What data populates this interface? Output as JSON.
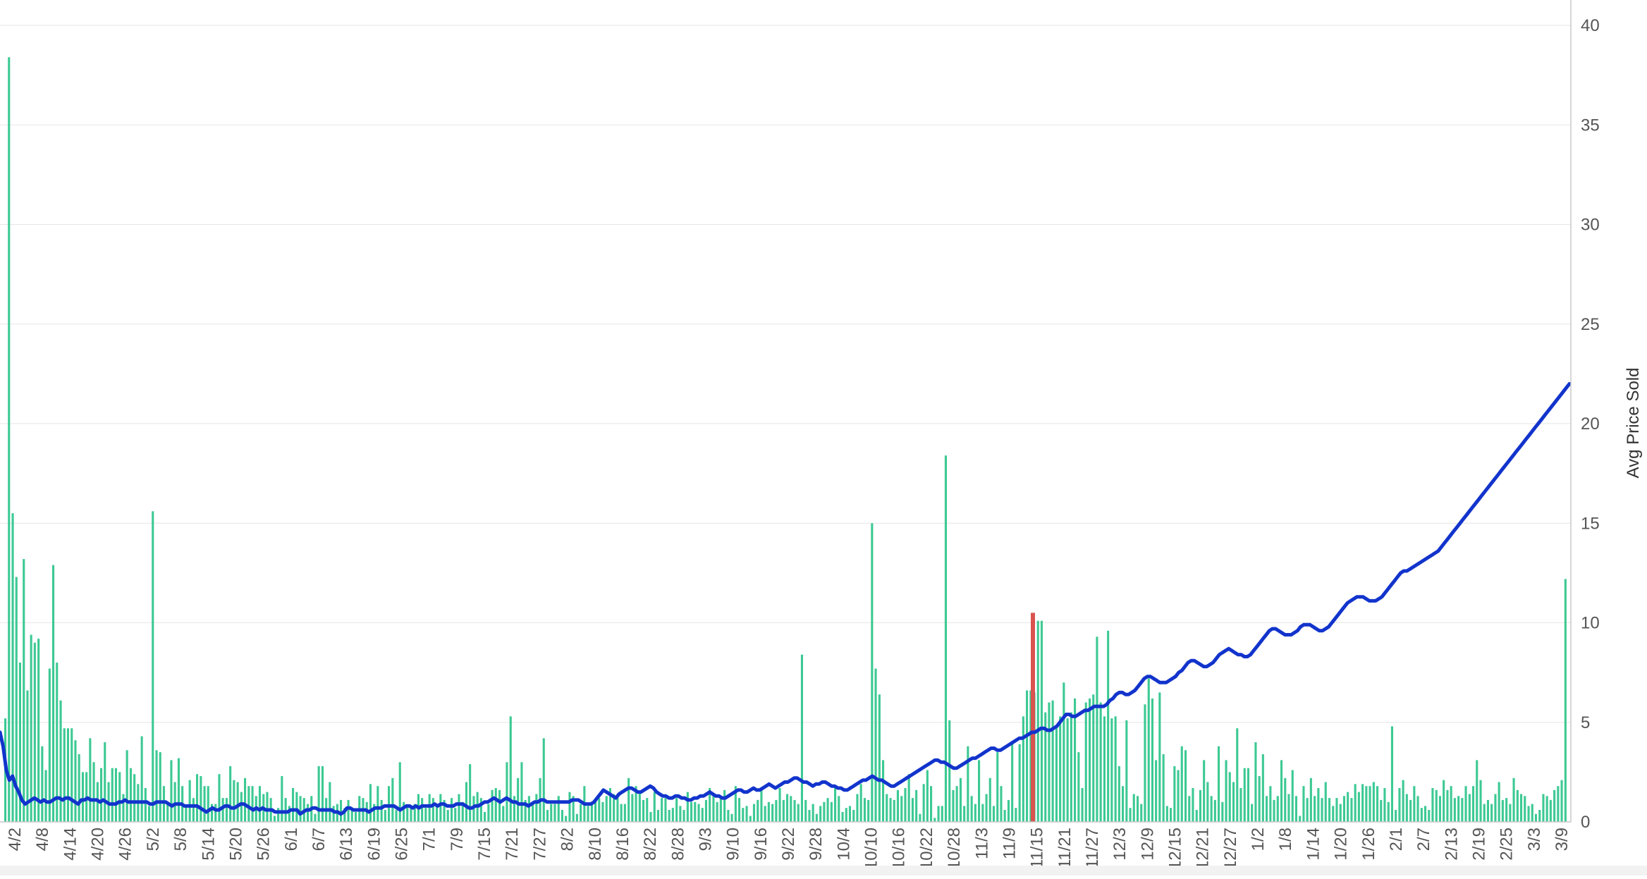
{
  "chart_data": {
    "type": "bar",
    "ylabel": "Avg Price Sold",
    "ylim": [
      0,
      40
    ],
    "y_ticks": [
      0,
      5,
      10,
      15,
      20,
      25,
      30,
      35,
      40
    ],
    "grid": true,
    "legend": "none",
    "colors": {
      "bars": "#3cc993",
      "line": "#1234cc",
      "marker": "#d9534f",
      "grid": "#e6e6e6",
      "axis": "#c8c8c8"
    },
    "x_tick_labels": [
      "4/2",
      "4/8",
      "4/14",
      "4/20",
      "4/26",
      "5/2",
      "5/8",
      "5/14",
      "5/20",
      "5/26",
      "6/1",
      "6/7",
      "6/13",
      "6/19",
      "6/25",
      "7/1",
      "7/9",
      "7/15",
      "7/21",
      "7/27",
      "8/2",
      "8/10",
      "8/16",
      "8/22",
      "8/28",
      "9/3",
      "9/10",
      "9/16",
      "9/22",
      "9/28",
      "10/4",
      "10/10",
      "10/16",
      "10/22",
      "10/28",
      "11/3",
      "11/9",
      "11/15",
      "11/21",
      "11/27",
      "12/3",
      "12/9",
      "12/15",
      "12/21",
      "12/27",
      "1/2",
      "1/8",
      "1/14",
      "1/20",
      "1/26",
      "2/1",
      "2/7",
      "2/13",
      "2/19",
      "2/25",
      "3/3",
      "3/9"
    ],
    "bars": [
      5.2,
      38.4,
      15.5,
      12.3,
      8,
      13.2,
      6.6,
      9.4,
      9,
      9.2,
      3.8,
      2.6,
      7.7,
      12.9,
      8,
      6.1,
      4.7,
      4.7,
      4.7,
      4.1,
      3.4,
      2.5,
      2.5,
      4.2,
      3,
      2,
      2.7,
      4,
      2,
      2.7,
      2.7,
      2.5,
      1.4,
      3.6,
      2.7,
      2.4,
      1.9,
      4.3,
      1.7,
      0.8,
      15.6,
      3.6,
      3.5,
      1.8,
      0.9,
      3.1,
      2,
      3.2,
      1.8,
      0.8,
      2.1,
      1.2,
      2.4,
      2.3,
      1.8,
      1.8,
      0.9,
      0.9,
      2.4,
      1.2,
      1.2,
      2.8,
      2.1,
      2,
      1.5,
      2.2,
      1.8,
      1.8,
      1.3,
      1.8,
      1.4,
      1.5,
      1.2,
      0.3,
      0.7,
      2.3,
      1.2,
      0.8,
      1.7,
      1.5,
      1.3,
      1.2,
      0.9,
      1.3,
      0.4,
      2.8,
      2.8,
      1.2,
      2,
      0.8,
      0.9,
      1.1,
      0.7,
      1.1,
      0.7,
      0.5,
      1.3,
      1.2,
      1,
      1.9,
      0.9,
      1.8,
      1.1,
      0.6,
      1.8,
      2.2,
      0.6,
      3,
      1,
      0.8,
      0.7,
      0.9,
      1.4,
      1.2,
      0.7,
      1.4,
      1.2,
      0.9,
      1.4,
      1.1,
      0.6,
      1.2,
      0.7,
      1.4,
      1,
      2,
      2.9,
      1.3,
      1.5,
      1.2,
      0.5,
      0.9,
      1.6,
      1.7,
      1.6,
      0.8,
      3,
      5.3,
      1.3,
      2.2,
      3,
      1.1,
      1.3,
      0.9,
      1.4,
      2.2,
      4.2,
      0.6,
      0.9,
      0.9,
      1.3,
      0.6,
      0.3,
      1.5,
      1.3,
      0.4,
      0.9,
      1.8,
      0.8,
      0.9,
      1,
      1.2,
      1,
      1.3,
      1.7,
      1.4,
      1.2,
      0.9,
      0.9,
      2.2,
      1.4,
      1.8,
      1.5,
      1.1,
      1.2,
      0.5,
      1.5,
      0.6,
      1.2,
      1.2,
      0.6,
      0.7,
      1.2,
      0.8,
      0.6,
      1.5,
      1,
      1,
      0.9,
      0.7,
      1.1,
      1.7,
      1.4,
      1,
      1.2,
      1.6,
      0.6,
      0.4,
      1.8,
      1.2,
      0.7,
      0.8,
      0.3,
      0.9,
      1.1,
      1.6,
      0.8,
      1,
      0.9,
      1.1,
      1.7,
      1.1,
      1.4,
      1.3,
      1.1,
      0.9,
      8.4,
      1.1,
      0.6,
      0.9,
      0.4,
      0.8,
      1,
      1.2,
      1,
      1.7,
      1.3,
      0.5,
      0.7,
      0.8,
      0.6,
      1.4,
      1.9,
      1.2,
      1.1,
      15,
      7.7,
      6.4,
      3.1,
      1.4,
      1.2,
      1.1,
      1.6,
      1.3,
      1.7,
      2.4,
      1.2,
      1.6,
      0.4,
      1.9,
      2.6,
      1.8,
      0.2,
      0.8,
      0.8,
      18.4,
      5.1,
      1.6,
      1.8,
      2.2,
      0.8,
      3.8,
      1.3,
      0.9,
      3.1,
      0.9,
      1.4,
      2.2,
      0.8,
      3.5,
      1.8,
      0.6,
      1.1,
      4,
      0.7,
      3.9,
      5.3,
      6.6,
      6.6,
      6.5,
      10.1,
      10.1,
      5.5,
      6,
      6.1,
      4.7,
      5.3,
      7,
      5.2,
      5.5,
      6.2,
      3.5,
      1.7,
      6,
      6.2,
      6.4,
      9.3,
      6,
      5.3,
      9.6,
      5.2,
      5.3,
      2.8,
      1.8,
      5.1,
      0.7,
      1.4,
      1.3,
      0.9,
      5.9,
      7.2,
      6.2,
      3.1,
      6.5,
      3.4,
      0.8,
      0.7,
      2.8,
      2.6,
      3.8,
      3.6,
      1.3,
      1.7,
      0.6,
      1.6,
      3.1,
      2,
      1.3,
      1.1,
      3.8,
      1,
      3.1,
      2.5,
      2,
      4.7,
      1.7,
      2.7,
      2.7,
      0.9,
      4,
      2.3,
      3.4,
      1.3,
      1.8,
      1.1,
      1.3,
      3.1,
      2.2,
      1.4,
      2.6,
      1.3,
      0.3,
      1.8,
      1.2,
      2.2,
      1.3,
      1.7,
      1.2,
      2,
      1.2,
      0.8,
      1.2,
      0.9,
      1.3,
      1.5,
      1.2,
      1.9,
      1.5,
      1.9,
      1.8,
      1.8,
      2,
      1.8,
      1.1,
      1.7,
      1,
      4.8,
      0.6,
      1.7,
      2.1,
      1.4,
      1.1,
      1.8,
      1.3,
      0.7,
      0.8,
      0.6,
      1.7,
      1.6,
      1.3,
      2.1,
      1.6,
      1.8,
      1.2,
      1.3,
      1.2,
      1.8,
      1.4,
      1.8,
      3.1,
      2.1,
      0.9,
      1.1,
      0.9,
      1.4,
      2,
      1.1,
      1.2,
      0.9,
      2.2,
      1.6,
      1.4,
      1.3,
      0.8,
      0.9,
      0.4,
      0.6,
      1.4,
      1.3,
      1.1,
      1.6,
      1.8,
      2.1,
      12.2
    ],
    "line": [
      4.5,
      3.8,
      2.6,
      2.1,
      2.3,
      1.8,
      1.5,
      1.1,
      0.9,
      1,
      1.1,
      1.2,
      1.1,
      1,
      1.1,
      1,
      1,
      1.1,
      1.2,
      1.2,
      1.1,
      1.2,
      1.2,
      1.1,
      1,
      0.9,
      1.1,
      1.1,
      1.2,
      1.1,
      1.1,
      1.1,
      1,
      1.1,
      1,
      0.9,
      0.9,
      0.9,
      1,
      1,
      1.1,
      1,
      1,
      1,
      1,
      1,
      1,
      1,
      0.9,
      0.9,
      1,
      1,
      1,
      1,
      0.9,
      0.8,
      0.9,
      0.9,
      0.9,
      0.8,
      0.8,
      0.8,
      0.8,
      0.8,
      0.7,
      0.6,
      0.5,
      0.6,
      0.7,
      0.6,
      0.6,
      0.7,
      0.8,
      0.8,
      0.7,
      0.7,
      0.8,
      0.9,
      0.9,
      0.8,
      0.7,
      0.6,
      0.7,
      0.6,
      0.7,
      0.6,
      0.6,
      0.6,
      0.5,
      0.5,
      0.5,
      0.5,
      0.5,
      0.6,
      0.6,
      0.6,
      0.4,
      0.5,
      0.6,
      0.6,
      0.7,
      0.7,
      0.6,
      0.6,
      0.6,
      0.6,
      0.6,
      0.5,
      0.5,
      0.4,
      0.5,
      0.7,
      0.7,
      0.6,
      0.6,
      0.6,
      0.6,
      0.6,
      0.5,
      0.6,
      0.7,
      0.7,
      0.7,
      0.8,
      0.8,
      0.8,
      0.8,
      0.7,
      0.6,
      0.7,
      0.8,
      0.8,
      0.7,
      0.8,
      0.7,
      0.8,
      0.8,
      0.8,
      0.8,
      0.9,
      0.8,
      0.9,
      0.9,
      0.8,
      0.8,
      0.8,
      0.9,
      0.9,
      0.9,
      0.8,
      0.7,
      0.7,
      0.8,
      0.8,
      0.9,
      1,
      1,
      1.1,
      1.2,
      1.1,
      1,
      1.1,
      1.2,
      1.1,
      1,
      1,
      0.9,
      0.9,
      0.9,
      0.8,
      0.9,
      1,
      1,
      1.1,
      1.1,
      1,
      1,
      1,
      1,
      1,
      1,
      1,
      1,
      1.1,
      1.1,
      1.1,
      1,
      0.9,
      0.9,
      0.9,
      1,
      1.2,
      1.4,
      1.6,
      1.5,
      1.4,
      1.3,
      1.2,
      1.4,
      1.5,
      1.6,
      1.7,
      1.7,
      1.6,
      1.5,
      1.5,
      1.6,
      1.7,
      1.8,
      1.7,
      1.5,
      1.4,
      1.3,
      1.3,
      1.2,
      1.2,
      1.3,
      1.3,
      1.2,
      1.2,
      1.1,
      1.1,
      1.2,
      1.2,
      1.3,
      1.3,
      1.4,
      1.5,
      1.4,
      1.3,
      1.3,
      1.2,
      1.2,
      1.3,
      1.4,
      1.5,
      1.6,
      1.6,
      1.5,
      1.5,
      1.6,
      1.7,
      1.6,
      1.6,
      1.7,
      1.8,
      1.9,
      1.8,
      1.7,
      1.8,
      1.9,
      2,
      2,
      2.1,
      2.2,
      2.2,
      2.1,
      2,
      2,
      1.9,
      1.8,
      1.9,
      1.9,
      2,
      2,
      1.9,
      1.8,
      1.8,
      1.7,
      1.7,
      1.6,
      1.6,
      1.7,
      1.8,
      1.9,
      2,
      2.1,
      2.1,
      2.2,
      2.3,
      2.2,
      2.1,
      2.1,
      2,
      1.9,
      1.8,
      1.8,
      1.9,
      2,
      2.1,
      2.2,
      2.3,
      2.4,
      2.5,
      2.6,
      2.7,
      2.8,
      2.9,
      3,
      3.1,
      3.1,
      3,
      3,
      2.9,
      2.8,
      2.7,
      2.7,
      2.8,
      2.9,
      3,
      3.1,
      3.2,
      3.2,
      3.3,
      3.4,
      3.5,
      3.6,
      3.7,
      3.7,
      3.6,
      3.6,
      3.7,
      3.8,
      3.9,
      4,
      4.1,
      4.2,
      4.2,
      4.3,
      4.4,
      4.5,
      4.5,
      4.6,
      4.7,
      4.7,
      4.6,
      4.6,
      4.7,
      4.8,
      5,
      5.2,
      5.4,
      5.4,
      5.3,
      5.3,
      5.4,
      5.5,
      5.6,
      5.6,
      5.7,
      5.8,
      5.8,
      5.8,
      5.8,
      5.9,
      6.1,
      6.2,
      6.4,
      6.5,
      6.5,
      6.4,
      6.4,
      6.5,
      6.6,
      6.8,
      7,
      7.2,
      7.3,
      7.3,
      7.2,
      7.1,
      7,
      7,
      7,
      7.1,
      7.2,
      7.3,
      7.5,
      7.6,
      7.8,
      8,
      8.1,
      8.1,
      8,
      7.9,
      7.8,
      7.8,
      7.9,
      8,
      8.2,
      8.4,
      8.5,
      8.6,
      8.7,
      8.6,
      8.5,
      8.4,
      8.4,
      8.3,
      8.3,
      8.4,
      8.6,
      8.8,
      9,
      9.2,
      9.4,
      9.6,
      9.7,
      9.7,
      9.6,
      9.5,
      9.4,
      9.4,
      9.4,
      9.5,
      9.6,
      9.8,
      9.9,
      9.9,
      9.9,
      9.8,
      9.7,
      9.6,
      9.6,
      9.7,
      9.8,
      10,
      10.2,
      10.4,
      10.6,
      10.8,
      11,
      11.1,
      11.2,
      11.3,
      11.3,
      11.3,
      11.2,
      11.1,
      11.1,
      11.1,
      11.2,
      11.3,
      11.5,
      11.7,
      11.9,
      12.1,
      12.3,
      12.5,
      12.6,
      12.6,
      12.7,
      12.8,
      12.9,
      13,
      13.1,
      13.2,
      13.3,
      13.4,
      13.5,
      13.6,
      13.8,
      14,
      14.2,
      14.4,
      14.6,
      14.8,
      15,
      15.2,
      15.4,
      15.6,
      15.8,
      16,
      16.2,
      16.4,
      16.6,
      16.8,
      17,
      17.2,
      17.4,
      17.6,
      17.8,
      18,
      18.2,
      18.4,
      18.6,
      18.8,
      19,
      19.2,
      19.4,
      19.6,
      19.8,
      20,
      20.2,
      20.4,
      20.6,
      20.8,
      21,
      21.2,
      21.4,
      21.6,
      21.8,
      22
    ]
  }
}
